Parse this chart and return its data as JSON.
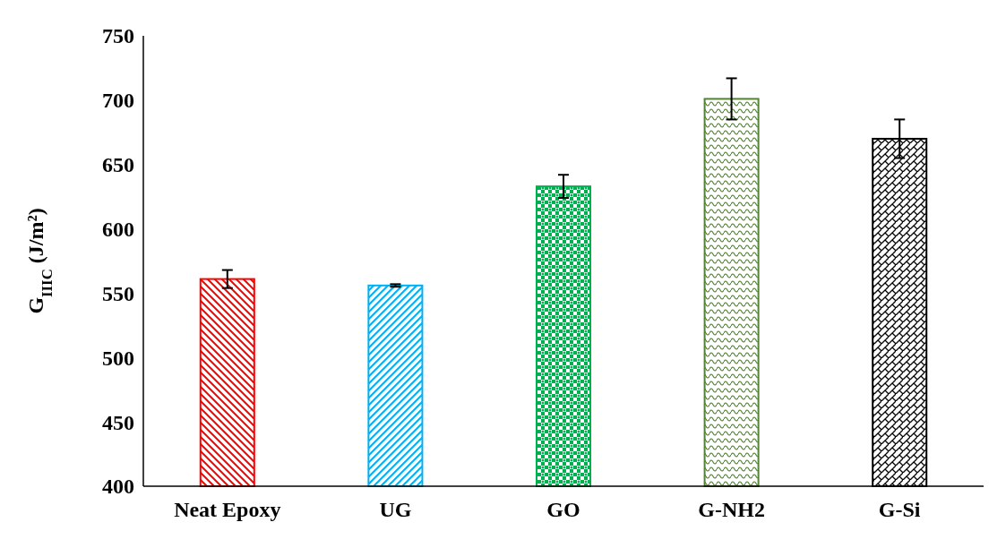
{
  "chart_data": {
    "type": "bar",
    "ylabel": "G$_{IIIC}$ (J/m²)",
    "categories": [
      "Neat Epoxy",
      "UG",
      "GO",
      "G-NH2",
      "G-Si"
    ],
    "values": [
      561,
      556,
      633,
      701,
      670
    ],
    "errors": [
      7,
      1,
      9,
      16,
      15
    ],
    "colors": [
      "#ff0000",
      "#00b0f0",
      "#00b050",
      "#548235",
      "#000000"
    ],
    "ylim": [
      400,
      750
    ],
    "yticks": [
      400,
      450,
      500,
      550,
      600,
      650,
      700,
      750
    ],
    "grid": false
  }
}
